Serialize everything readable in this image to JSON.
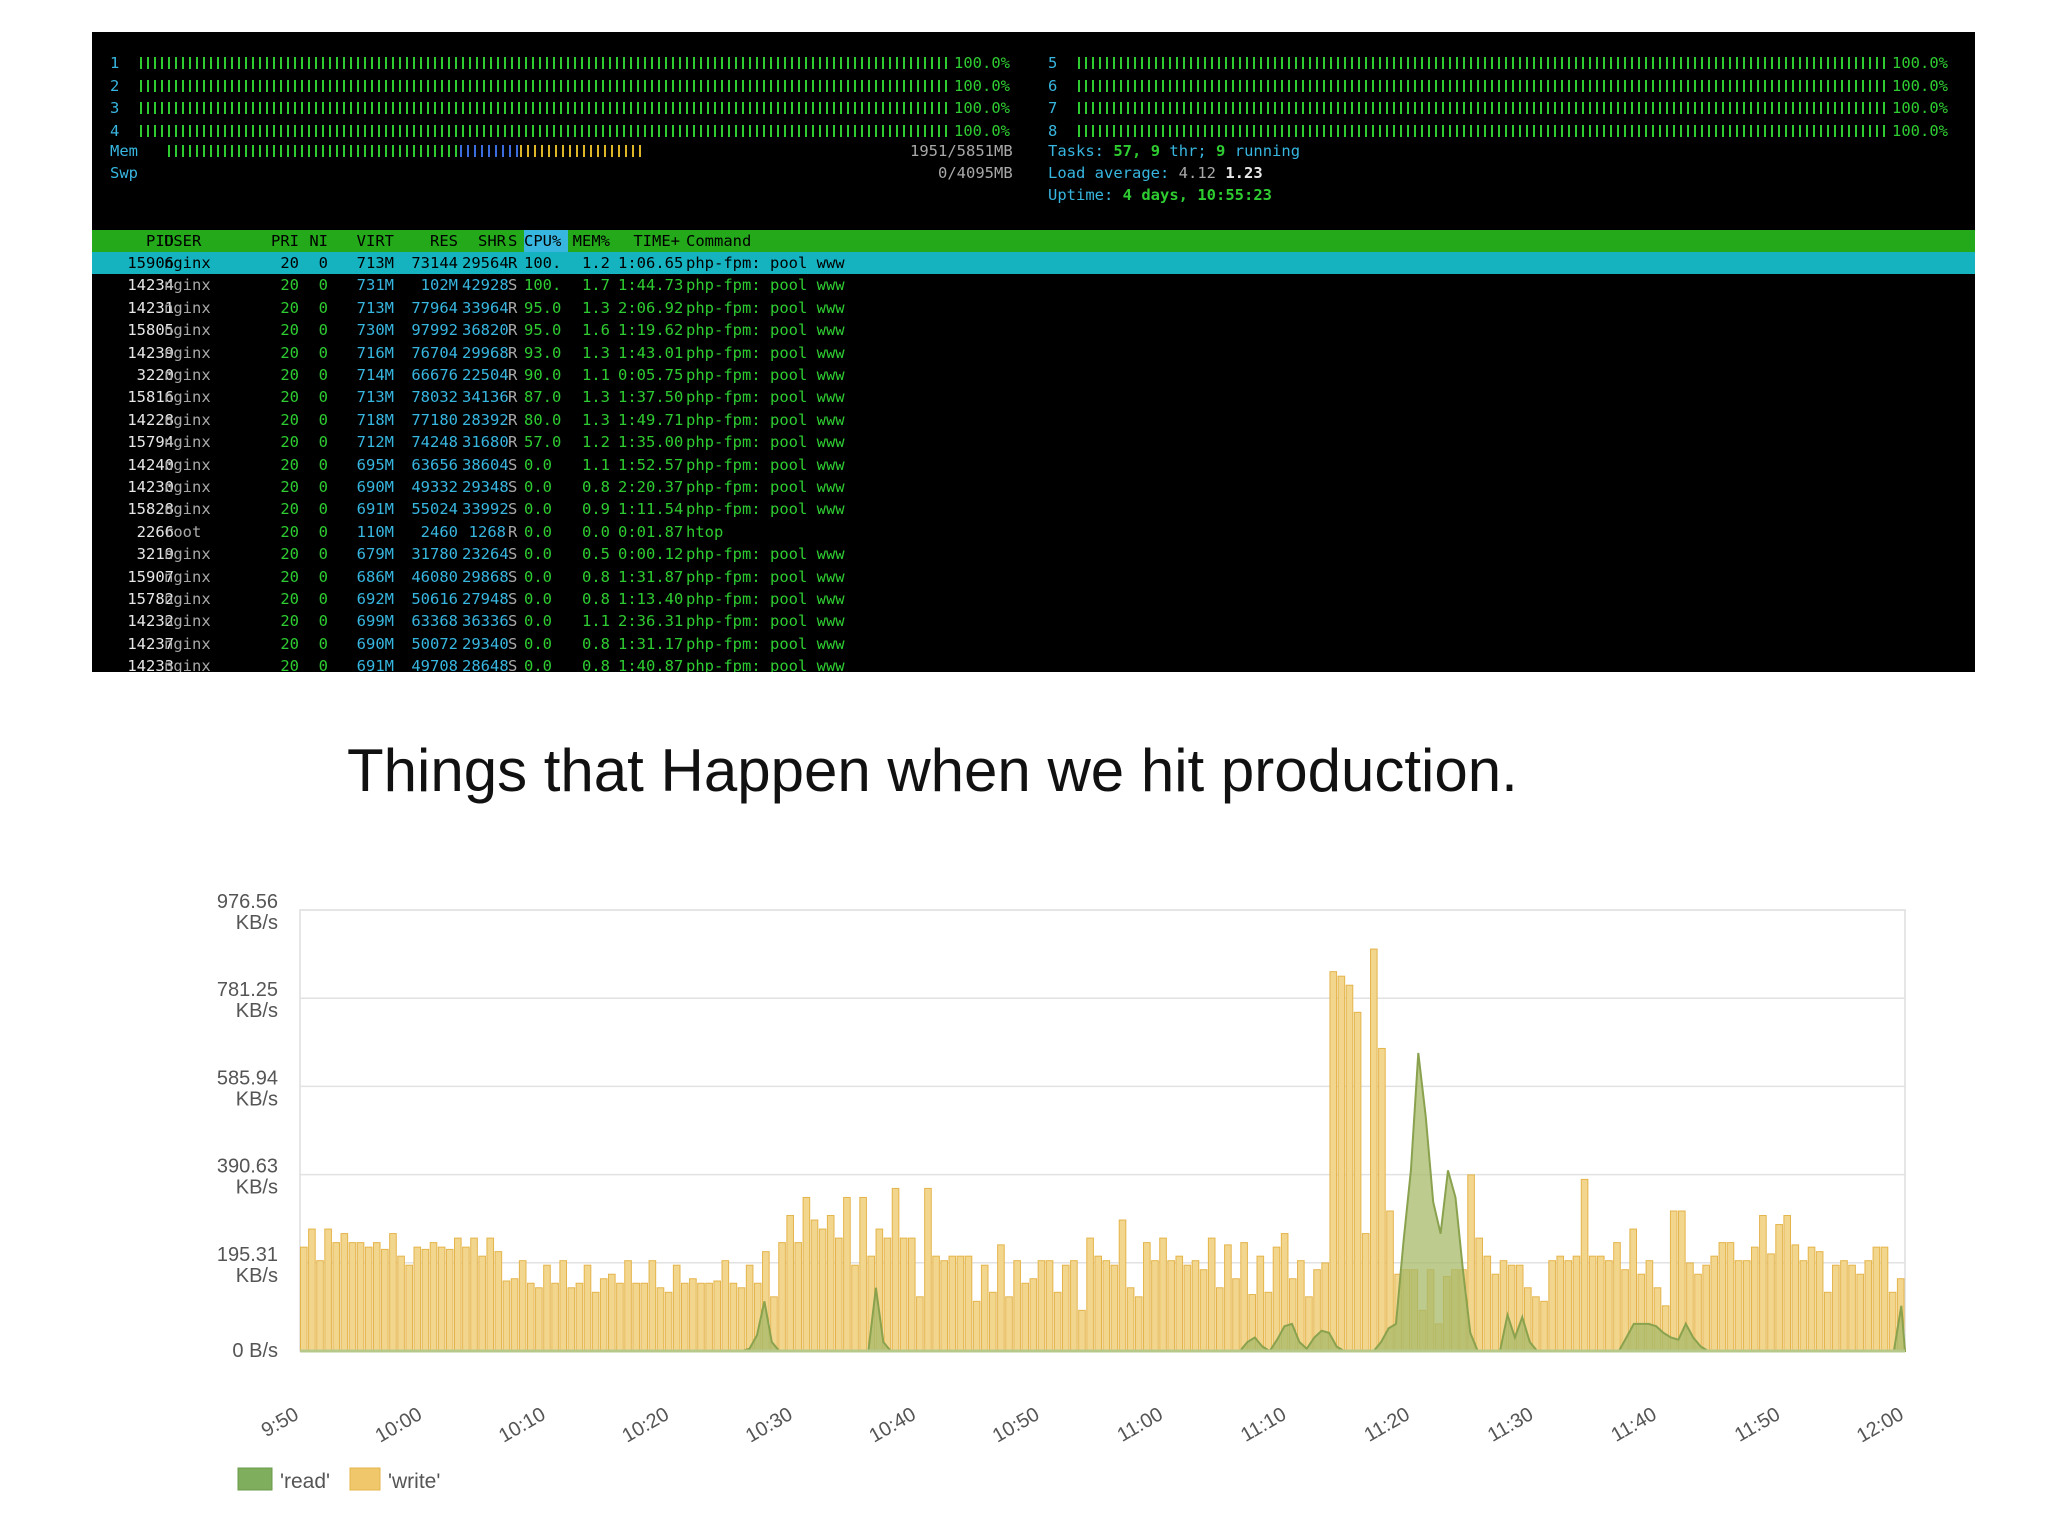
{
  "terminal": {
    "cpus": [
      {
        "id": "1",
        "pct": "100.0%",
        "fill": 1.0
      },
      {
        "id": "2",
        "pct": "100.0%",
        "fill": 1.0
      },
      {
        "id": "3",
        "pct": "100.0%",
        "fill": 1.0
      },
      {
        "id": "4",
        "pct": "100.0%",
        "fill": 1.0
      },
      {
        "id": "5",
        "pct": "100.0%",
        "fill": 1.0
      },
      {
        "id": "6",
        "pct": "100.0%",
        "fill": 1.0
      },
      {
        "id": "7",
        "pct": "100.0%",
        "fill": 1.0
      },
      {
        "id": "8",
        "pct": "100.0%",
        "fill": 1.0
      }
    ],
    "mem": {
      "label": "Mem",
      "value": "1951/5851MB"
    },
    "swp": {
      "label": "Swp",
      "value": "0/4095MB"
    },
    "tasks": {
      "label": "Tasks:",
      "count": "57,",
      "thr": "9",
      "thr_label": "thr;",
      "running": "9",
      "running_label": "running"
    },
    "load": {
      "label": "Load average:",
      "v1": "4.12",
      "v2": "1.23"
    },
    "uptime": {
      "label": "Uptime:",
      "value": "4 days, 10:55:23"
    },
    "columns": [
      "PID",
      "USER",
      "PRI",
      "NI",
      "VIRT",
      "RES",
      "SHR",
      "S",
      "CPU%",
      "MEM%",
      "TIME+",
      "Command"
    ],
    "processes": [
      [
        "15906",
        "nginx",
        "20",
        "0",
        "713M",
        "73144",
        "29564",
        "R",
        "100.",
        "1.2",
        "1:06.65",
        "php-fpm: pool www"
      ],
      [
        "14234",
        "nginx",
        "20",
        "0",
        "731M",
        "102M",
        "42928",
        "S",
        "100.",
        "1.7",
        "1:44.73",
        "php-fpm: pool www"
      ],
      [
        "14231",
        "nginx",
        "20",
        "0",
        "713M",
        "77964",
        "33964",
        "R",
        "95.0",
        "1.3",
        "2:06.92",
        "php-fpm: pool www"
      ],
      [
        "15805",
        "nginx",
        "20",
        "0",
        "730M",
        "97992",
        "36820",
        "R",
        "95.0",
        "1.6",
        "1:19.62",
        "php-fpm: pool www"
      ],
      [
        "14239",
        "nginx",
        "20",
        "0",
        "716M",
        "76704",
        "29968",
        "R",
        "93.0",
        "1.3",
        "1:43.01",
        "php-fpm: pool www"
      ],
      [
        "3220",
        "nginx",
        "20",
        "0",
        "714M",
        "66676",
        "22504",
        "R",
        "90.0",
        "1.1",
        "0:05.75",
        "php-fpm: pool www"
      ],
      [
        "15816",
        "nginx",
        "20",
        "0",
        "713M",
        "78032",
        "34136",
        "R",
        "87.0",
        "1.3",
        "1:37.50",
        "php-fpm: pool www"
      ],
      [
        "14228",
        "nginx",
        "20",
        "0",
        "718M",
        "77180",
        "28392",
        "R",
        "80.0",
        "1.3",
        "1:49.71",
        "php-fpm: pool www"
      ],
      [
        "15794",
        "nginx",
        "20",
        "0",
        "712M",
        "74248",
        "31680",
        "R",
        "57.0",
        "1.2",
        "1:35.00",
        "php-fpm: pool www"
      ],
      [
        "14240",
        "nginx",
        "20",
        "0",
        "695M",
        "63656",
        "38604",
        "S",
        "0.0",
        "1.1",
        "1:52.57",
        "php-fpm: pool www"
      ],
      [
        "14230",
        "nginx",
        "20",
        "0",
        "690M",
        "49332",
        "29348",
        "S",
        "0.0",
        "0.8",
        "2:20.37",
        "php-fpm: pool www"
      ],
      [
        "15828",
        "nginx",
        "20",
        "0",
        "691M",
        "55024",
        "33992",
        "S",
        "0.0",
        "0.9",
        "1:11.54",
        "php-fpm: pool www"
      ],
      [
        "2266",
        "root",
        "20",
        "0",
        "110M",
        "2460",
        "1268",
        "R",
        "0.0",
        "0.0",
        "0:01.87",
        "htop"
      ],
      [
        "3219",
        "nginx",
        "20",
        "0",
        "679M",
        "31780",
        "23264",
        "S",
        "0.0",
        "0.5",
        "0:00.12",
        "php-fpm: pool www"
      ],
      [
        "15907",
        "nginx",
        "20",
        "0",
        "686M",
        "46080",
        "29868",
        "S",
        "0.0",
        "0.8",
        "1:31.87",
        "php-fpm: pool www"
      ],
      [
        "15782",
        "nginx",
        "20",
        "0",
        "692M",
        "50616",
        "27948",
        "S",
        "0.0",
        "0.8",
        "1:13.40",
        "php-fpm: pool www"
      ],
      [
        "14232",
        "nginx",
        "20",
        "0",
        "699M",
        "63368",
        "36336",
        "S",
        "0.0",
        "1.1",
        "2:36.31",
        "php-fpm: pool www"
      ],
      [
        "14237",
        "nginx",
        "20",
        "0",
        "690M",
        "50072",
        "29340",
        "S",
        "0.0",
        "0.8",
        "1:31.17",
        "php-fpm: pool www"
      ],
      [
        "14233",
        "nginx",
        "20",
        "0",
        "691M",
        "49708",
        "28648",
        "S",
        "0.0",
        "0.8",
        "1:40.87",
        "php-fpm: pool www"
      ]
    ]
  },
  "headline": "Things that Happen when we hit production.",
  "chart_data": {
    "type": "bar",
    "y_ticks": [
      {
        "value": 0,
        "label": "0 B/s"
      },
      {
        "value": 195.31,
        "label": "195.31 KB/s"
      },
      {
        "value": 390.63,
        "label": "390.63 KB/s"
      },
      {
        "value": 585.94,
        "label": "585.94 KB/s"
      },
      {
        "value": 781.25,
        "label": "781.25 KB/s"
      },
      {
        "value": 976.56,
        "label": "976.56 KB/s"
      }
    ],
    "ylim": [
      0,
      976.56
    ],
    "x_ticks": [
      "9:50",
      "10:00",
      "10:10",
      "10:20",
      "10:30",
      "10:40",
      "10:50",
      "11:00",
      "11:10",
      "11:20",
      "11:30",
      "11:40",
      "11:50",
      "12:00"
    ],
    "x_range_minutes": [
      0,
      130
    ],
    "series": [
      {
        "name": "'read'",
        "color": "#7fae5c",
        "kind": "area",
        "values": [
          0,
          0,
          0,
          0,
          0,
          0,
          0,
          0,
          0,
          0,
          0,
          0,
          0,
          0,
          0,
          0,
          0,
          0,
          0,
          0,
          0,
          0,
          0,
          0,
          0,
          0,
          0,
          0,
          0,
          0,
          0,
          0,
          0,
          0,
          0,
          0,
          0,
          0,
          0,
          0,
          0,
          0,
          0,
          0,
          0,
          0,
          0,
          0,
          0,
          0,
          0,
          0,
          0,
          0,
          0,
          0,
          0,
          0,
          0,
          0,
          5,
          35,
          110,
          20,
          0,
          0,
          0,
          0,
          0,
          0,
          0,
          0,
          0,
          0,
          0,
          0,
          0,
          140,
          20,
          0,
          0,
          0,
          0,
          0,
          0,
          0,
          0,
          0,
          0,
          0,
          0,
          0,
          0,
          0,
          0,
          0,
          0,
          0,
          0,
          0,
          0,
          0,
          0,
          0,
          0,
          0,
          0,
          0,
          0,
          0,
          0,
          0,
          0,
          0,
          0,
          0,
          0,
          0,
          0,
          0,
          0,
          0,
          0,
          0,
          0,
          0,
          0,
          20,
          30,
          10,
          0,
          25,
          55,
          60,
          20,
          5,
          30,
          45,
          40,
          10,
          0,
          0,
          0,
          0,
          0,
          20,
          50,
          60,
          240,
          400,
          660,
          520,
          330,
          260,
          400,
          340,
          180,
          40,
          0,
          0,
          0,
          0,
          80,
          30,
          75,
          20,
          0,
          0,
          0,
          0,
          0,
          0,
          0,
          0,
          0,
          0,
          0,
          0,
          30,
          60,
          60,
          60,
          55,
          40,
          30,
          25,
          60,
          30,
          10,
          0,
          0,
          0,
          0,
          0,
          0,
          0,
          0,
          0,
          0,
          0,
          0,
          0,
          0,
          0,
          0,
          0,
          0,
          0,
          0,
          0,
          0,
          0,
          0,
          0,
          0,
          100
        ]
      },
      {
        "name": "'write'",
        "color": "#f0c76a",
        "kind": "bar",
        "values": [
          230,
          270,
          200,
          270,
          240,
          260,
          240,
          240,
          230,
          240,
          225,
          260,
          210,
          190,
          230,
          225,
          240,
          230,
          225,
          250,
          230,
          250,
          210,
          250,
          220,
          155,
          160,
          200,
          150,
          140,
          190,
          150,
          200,
          140,
          150,
          190,
          130,
          160,
          170,
          150,
          200,
          150,
          150,
          200,
          140,
          130,
          190,
          150,
          160,
          150,
          150,
          155,
          200,
          150,
          140,
          190,
          150,
          220,
          120,
          240,
          300,
          240,
          340,
          290,
          270,
          300,
          250,
          340,
          190,
          340,
          210,
          270,
          250,
          360,
          250,
          250,
          120,
          360,
          210,
          200,
          210,
          210,
          210,
          110,
          190,
          130,
          235,
          120,
          200,
          150,
          160,
          200,
          200,
          130,
          190,
          200,
          90,
          250,
          210,
          200,
          190,
          290,
          140,
          120,
          240,
          200,
          250,
          200,
          210,
          190,
          200,
          180,
          250,
          140,
          235,
          160,
          240,
          125,
          210,
          130,
          230,
          260,
          160,
          200,
          120,
          180,
          195,
          840,
          830,
          810,
          750,
          260,
          890,
          670,
          310,
          170,
          180,
          180,
          90,
          180,
          60,
          165,
          180,
          180,
          390,
          250,
          210,
          170,
          200,
          190,
          190,
          140,
          120,
          110,
          200,
          210,
          200,
          210,
          380,
          210,
          210,
          200,
          240,
          180,
          270,
          170,
          200,
          140,
          100,
          310,
          310,
          195,
          170,
          190,
          210,
          240,
          240,
          200,
          200,
          230,
          300,
          215,
          280,
          300,
          235,
          200,
          230,
          220,
          130,
          190,
          200,
          190,
          170,
          200,
          230,
          230,
          130,
          160
        ]
      }
    ],
    "legend": [
      "'read'",
      "'write'"
    ],
    "legend_position": "bottom-left",
    "grid": true
  }
}
